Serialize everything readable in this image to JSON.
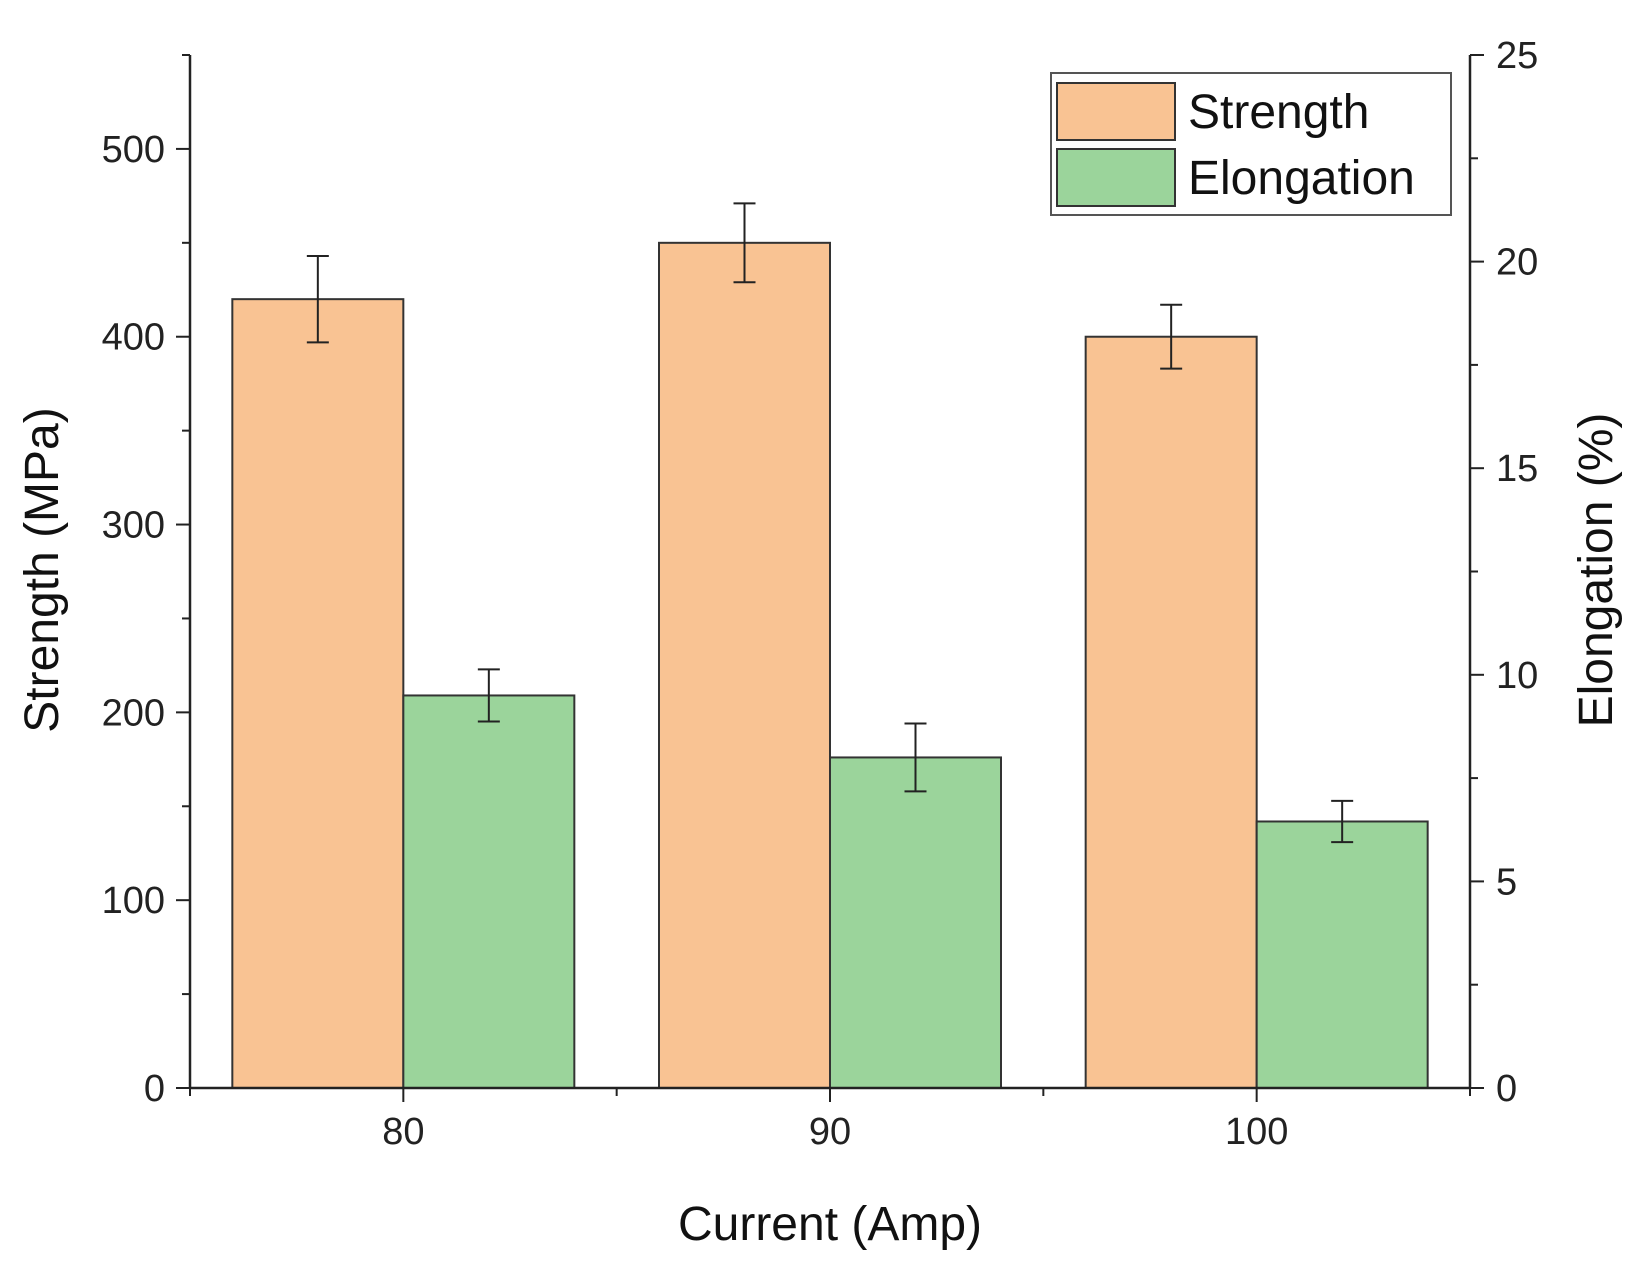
{
  "chart_data": {
    "type": "bar",
    "title": "",
    "xlabel": "Current (Amp)",
    "ylabel": "Strength (MPa)",
    "y2label": "Elongation (%)",
    "categories": [
      "80",
      "90",
      "100"
    ],
    "ylim": [
      0,
      550
    ],
    "y2lim": [
      0,
      25
    ],
    "yticks": [
      0,
      100,
      200,
      300,
      400,
      500
    ],
    "y2ticks": [
      0,
      5,
      10,
      15,
      20,
      25
    ],
    "grid": false,
    "legend_position": "top-right",
    "series": [
      {
        "name": "Strength",
        "axis": "left",
        "color": "#F9C393",
        "values": [
          420,
          450,
          400
        ],
        "errors": [
          23,
          21,
          17
        ]
      },
      {
        "name": "Elongation",
        "axis": "right",
        "color": "#9BD49B",
        "values": [
          9.5,
          8.0,
          6.45
        ],
        "errors": [
          0.63,
          0.82,
          0.5
        ]
      }
    ]
  }
}
